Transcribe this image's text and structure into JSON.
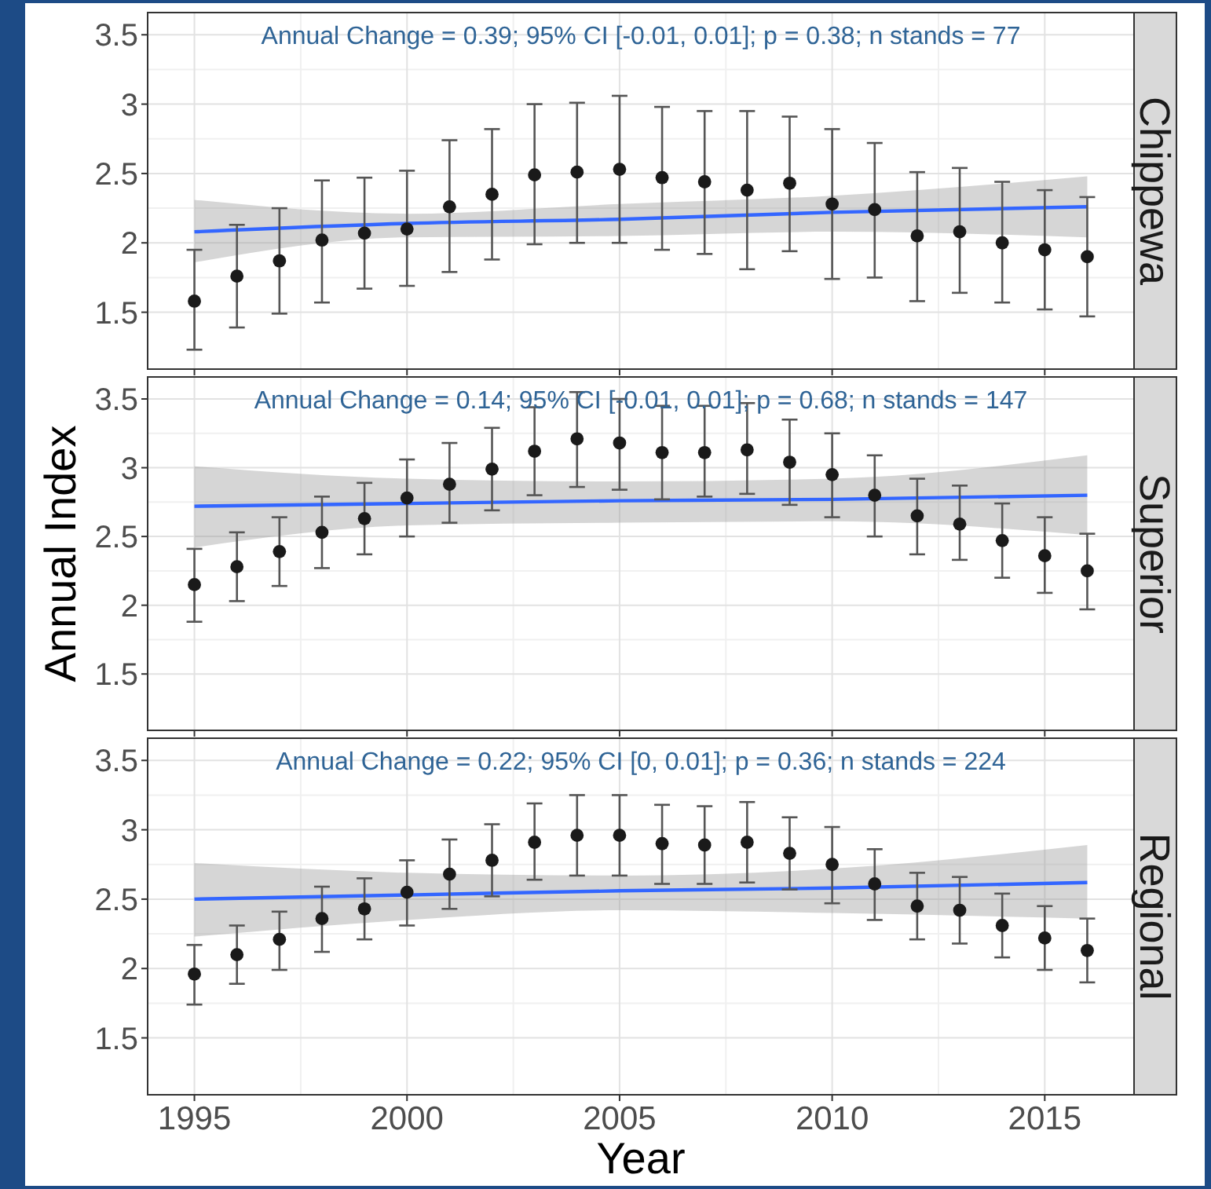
{
  "chart_data": [
    {
      "type": "scatter",
      "title": "Chippewa",
      "annotations": [
        "Annual Change = 0.39; 95% CI [-0.01, 0.01]; p = 0.38; n stands = 77"
      ],
      "x": [
        1995,
        1996,
        1997,
        1998,
        1999,
        2000,
        2001,
        2002,
        2003,
        2004,
        2005,
        2006,
        2007,
        2008,
        2009,
        2010,
        2011,
        2012,
        2013,
        2014,
        2015,
        2016
      ],
      "xlim": [
        1993.9,
        2017.1
      ],
      "ylim": [
        1.09,
        3.66
      ],
      "xticks": [
        1995,
        2000,
        2005,
        2010,
        2015
      ],
      "yticks": [
        1.5,
        2.0,
        2.5,
        3.0,
        3.5
      ],
      "grid": true,
      "tick_labels": "y",
      "series": [
        {
          "marker": "circle",
          "color": "#1a1a1a",
          "values": [
            1.58,
            1.76,
            1.87,
            2.02,
            2.07,
            2.1,
            2.26,
            2.35,
            2.49,
            2.51,
            2.53,
            2.47,
            2.44,
            2.38,
            2.43,
            2.28,
            2.24,
            2.05,
            2.08,
            2.0,
            1.95,
            1.9
          ],
          "errors": [
            [
              1.23,
              1.95
            ],
            [
              1.39,
              2.13
            ],
            [
              1.49,
              2.25
            ],
            [
              1.57,
              2.45
            ],
            [
              1.67,
              2.47
            ],
            [
              1.69,
              2.52
            ],
            [
              1.79,
              2.74
            ],
            [
              1.88,
              2.82
            ],
            [
              1.99,
              3.0
            ],
            [
              2.0,
              3.01
            ],
            [
              2.0,
              3.06
            ],
            [
              1.95,
              2.98
            ],
            [
              1.92,
              2.95
            ],
            [
              1.81,
              2.95
            ],
            [
              1.94,
              2.91
            ],
            [
              1.74,
              2.82
            ],
            [
              1.75,
              2.72
            ],
            [
              1.58,
              2.51
            ],
            [
              1.64,
              2.54
            ],
            [
              1.57,
              2.44
            ],
            [
              1.52,
              2.38
            ],
            [
              1.47,
              2.33
            ]
          ]
        },
        {
          "type": "line",
          "marker": "none",
          "color": "#3366ff",
          "x": [
            1995,
            2000,
            2005,
            2010,
            2016
          ],
          "values": [
            2.08,
            2.14,
            2.17,
            2.22,
            2.26
          ],
          "lower": [
            1.86,
            2.04,
            2.05,
            2.08,
            2.04
          ],
          "upper": [
            2.31,
            2.21,
            2.28,
            2.34,
            2.48
          ]
        }
      ]
    },
    {
      "type": "scatter",
      "title": "Superior",
      "ylabel": "Annual Index",
      "annotations": [
        "Annual Change = 0.14; 95% CI [-0.01, 0.01]; p = 0.68; n stands = 147"
      ],
      "x": [
        1995,
        1996,
        1997,
        1998,
        1999,
        2000,
        2001,
        2002,
        2003,
        2004,
        2005,
        2006,
        2007,
        2008,
        2009,
        2010,
        2011,
        2012,
        2013,
        2014,
        2015,
        2016
      ],
      "xlim": [
        1993.9,
        2017.1
      ],
      "ylim": [
        1.09,
        3.66
      ],
      "xticks": [
        1995,
        2000,
        2005,
        2010,
        2015
      ],
      "yticks": [
        1.5,
        2.0,
        2.5,
        3.0,
        3.5
      ],
      "grid": true,
      "tick_labels": "y",
      "series": [
        {
          "marker": "circle",
          "color": "#1a1a1a",
          "values": [
            2.15,
            2.28,
            2.39,
            2.53,
            2.63,
            2.78,
            2.88,
            2.99,
            3.12,
            3.21,
            3.18,
            3.11,
            3.11,
            3.13,
            3.04,
            2.95,
            2.8,
            2.65,
            2.59,
            2.47,
            2.36,
            2.25
          ],
          "errors": [
            [
              1.88,
              2.41
            ],
            [
              2.03,
              2.53
            ],
            [
              2.14,
              2.64
            ],
            [
              2.27,
              2.79
            ],
            [
              2.37,
              2.89
            ],
            [
              2.5,
              3.06
            ],
            [
              2.6,
              3.18
            ],
            [
              2.69,
              3.29
            ],
            [
              2.8,
              3.44
            ],
            [
              2.86,
              3.55
            ],
            [
              2.84,
              3.5
            ],
            [
              2.77,
              3.45
            ],
            [
              2.79,
              3.45
            ],
            [
              2.81,
              3.47
            ],
            [
              2.73,
              3.35
            ],
            [
              2.64,
              3.25
            ],
            [
              2.5,
              3.09
            ],
            [
              2.37,
              2.92
            ],
            [
              2.33,
              2.87
            ],
            [
              2.2,
              2.74
            ],
            [
              2.09,
              2.64
            ],
            [
              1.97,
              2.52
            ]
          ]
        },
        {
          "type": "line",
          "marker": "none",
          "color": "#3366ff",
          "x": [
            1995,
            2000,
            2005,
            2010,
            2016
          ],
          "values": [
            2.72,
            2.74,
            2.76,
            2.77,
            2.8
          ],
          "lower": [
            2.42,
            2.58,
            2.6,
            2.61,
            2.51
          ],
          "upper": [
            3.01,
            2.92,
            2.9,
            2.92,
            3.09
          ]
        }
      ]
    },
    {
      "type": "scatter",
      "title": "Regional",
      "xlabel": "Year",
      "annotations": [
        "Annual Change = 0.22; 95% CI [0, 0.01]; p = 0.36; n stands = 224"
      ],
      "x": [
        1995,
        1996,
        1997,
        1998,
        1999,
        2000,
        2001,
        2002,
        2003,
        2004,
        2005,
        2006,
        2007,
        2008,
        2009,
        2010,
        2011,
        2012,
        2013,
        2014,
        2015,
        2016
      ],
      "xlim": [
        1993.9,
        2017.1
      ],
      "ylim": [
        1.09,
        3.66
      ],
      "xticks": [
        1995,
        2000,
        2005,
        2010,
        2015
      ],
      "yticks": [
        1.5,
        2.0,
        2.5,
        3.0,
        3.5
      ],
      "grid": true,
      "series": [
        {
          "marker": "circle",
          "color": "#1a1a1a",
          "values": [
            1.96,
            2.1,
            2.21,
            2.36,
            2.43,
            2.55,
            2.68,
            2.78,
            2.91,
            2.96,
            2.96,
            2.9,
            2.89,
            2.91,
            2.83,
            2.75,
            2.61,
            2.45,
            2.42,
            2.31,
            2.22,
            2.13
          ],
          "errors": [
            [
              1.74,
              2.17
            ],
            [
              1.89,
              2.31
            ],
            [
              1.99,
              2.41
            ],
            [
              2.12,
              2.59
            ],
            [
              2.21,
              2.65
            ],
            [
              2.31,
              2.78
            ],
            [
              2.43,
              2.93
            ],
            [
              2.52,
              3.04
            ],
            [
              2.64,
              3.19
            ],
            [
              2.67,
              3.25
            ],
            [
              2.67,
              3.25
            ],
            [
              2.61,
              3.18
            ],
            [
              2.61,
              3.17
            ],
            [
              2.62,
              3.2
            ],
            [
              2.57,
              3.09
            ],
            [
              2.47,
              3.02
            ],
            [
              2.35,
              2.86
            ],
            [
              2.21,
              2.69
            ],
            [
              2.18,
              2.66
            ],
            [
              2.08,
              2.54
            ],
            [
              1.99,
              2.45
            ],
            [
              1.9,
              2.36
            ]
          ]
        },
        {
          "type": "line",
          "marker": "none",
          "color": "#3366ff",
          "x": [
            1995,
            2000,
            2005,
            2010,
            2016
          ],
          "values": [
            2.5,
            2.53,
            2.56,
            2.58,
            2.62
          ],
          "lower": [
            2.23,
            2.35,
            2.42,
            2.4,
            2.36
          ],
          "upper": [
            2.76,
            2.69,
            2.67,
            2.72,
            2.89
          ]
        }
      ]
    }
  ]
}
